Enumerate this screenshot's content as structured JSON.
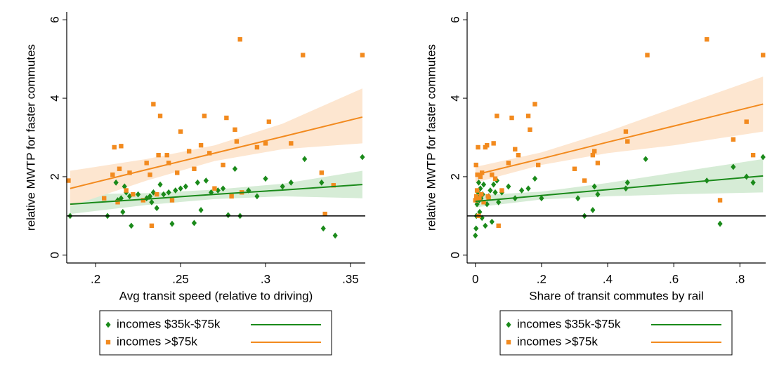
{
  "chart_data": [
    {
      "type": "scatter",
      "y_label": "relative MWTP for faster commutes",
      "x_label": "Avg transit speed (relative to driving)",
      "xlim": [
        0.183,
        0.3587
      ],
      "ylim": [
        -0.2,
        6.2
      ],
      "xticks": [
        {
          "value": 0.2,
          "label": ".2"
        },
        {
          "value": 0.25,
          "label": ".25"
        },
        {
          "value": 0.3,
          "label": ".3"
        },
        {
          "value": 0.35,
          "label": ".35"
        }
      ],
      "yticks": [
        0,
        2,
        4,
        6
      ],
      "hline": 1,
      "series": [
        {
          "name": "incomes $35k-$75k",
          "color": "#1a8a1a",
          "marker": "diamond",
          "x": [
            0.185,
            0.207,
            0.212,
            0.213,
            0.215,
            0.216,
            0.217,
            0.218,
            0.22,
            0.221,
            0.225,
            0.23,
            0.232,
            0.233,
            0.234,
            0.236,
            0.238,
            0.24,
            0.243,
            0.245,
            0.247,
            0.25,
            0.253,
            0.258,
            0.26,
            0.262,
            0.265,
            0.268,
            0.272,
            0.275,
            0.278,
            0.282,
            0.285,
            0.29,
            0.295,
            0.3,
            0.31,
            0.315,
            0.323,
            0.333,
            0.334,
            0.341,
            0.357
          ],
          "values": [
            1.0,
            1.0,
            1.85,
            1.4,
            1.45,
            1.1,
            1.75,
            1.6,
            1.5,
            0.75,
            1.55,
            1.45,
            1.5,
            1.35,
            1.6,
            1.2,
            1.8,
            1.55,
            1.6,
            0.8,
            1.65,
            1.7,
            1.75,
            0.82,
            1.85,
            1.15,
            1.9,
            1.6,
            1.65,
            1.7,
            1.02,
            2.2,
            1.0,
            1.65,
            1.5,
            1.95,
            1.75,
            1.85,
            2.45,
            1.85,
            0.68,
            0.5,
            2.5
          ],
          "fit": {
            "color": "#1a8a1a",
            "band": "#d6ecd6",
            "x": [
              0.185,
              0.23,
              0.27,
              0.31,
              0.357
            ],
            "values": [
              1.3,
              1.43,
              1.55,
              1.66,
              1.8
            ],
            "lower": [
              1.05,
              1.28,
              1.43,
              1.5,
              1.45
            ],
            "upper": [
              1.55,
              1.58,
              1.67,
              1.82,
              2.15
            ]
          }
        },
        {
          "name": "incomes >$75k",
          "color": "#f28a1e",
          "marker": "square",
          "x": [
            0.184,
            0.205,
            0.21,
            0.211,
            0.213,
            0.214,
            0.215,
            0.218,
            0.22,
            0.222,
            0.228,
            0.23,
            0.232,
            0.233,
            0.234,
            0.236,
            0.237,
            0.238,
            0.242,
            0.243,
            0.245,
            0.248,
            0.25,
            0.255,
            0.258,
            0.262,
            0.264,
            0.267,
            0.27,
            0.275,
            0.277,
            0.28,
            0.282,
            0.283,
            0.285,
            0.286,
            0.295,
            0.3,
            0.302,
            0.315,
            0.322,
            0.333,
            0.335,
            0.34,
            0.357
          ],
          "values": [
            1.9,
            1.45,
            2.05,
            2.75,
            1.35,
            2.2,
            2.78,
            1.65,
            2.1,
            1.55,
            1.4,
            2.35,
            2.05,
            0.75,
            3.85,
            1.55,
            2.55,
            3.55,
            2.55,
            2.35,
            1.4,
            2.1,
            3.15,
            2.65,
            2.2,
            2.8,
            3.55,
            2.6,
            1.7,
            2.3,
            3.5,
            1.5,
            3.2,
            2.9,
            5.5,
            1.6,
            2.75,
            2.85,
            3.4,
            2.85,
            5.1,
            2.1,
            1.05,
            1.78,
            5.1
          ],
          "fit": {
            "color": "#f28a1e",
            "band": "#fde6d0",
            "x": [
              0.185,
              0.23,
              0.27,
              0.31,
              0.357
            ],
            "values": [
              1.7,
              2.18,
              2.6,
              3.02,
              3.52
            ],
            "lower": [
              1.25,
              1.9,
              2.4,
              2.7,
              2.85
            ],
            "upper": [
              2.15,
              2.45,
              2.8,
              3.35,
              4.25
            ]
          }
        }
      ]
    },
    {
      "type": "scatter",
      "y_label": "relative MWTP for faster commutes",
      "x_label": "Share of transit commutes by rail",
      "xlim": [
        -0.025,
        0.878
      ],
      "ylim": [
        -0.2,
        6.2
      ],
      "xticks": [
        0,
        {
          "value": 0.2,
          "label": ".2"
        },
        {
          "value": 0.4,
          "label": ".4"
        },
        {
          "value": 0.6,
          "label": ".6"
        },
        {
          "value": 0.8,
          "label": ".8"
        }
      ],
      "yticks": [
        0,
        2,
        4,
        6
      ],
      "hline": 1,
      "series": [
        {
          "name": "incomes $35k-$75k",
          "color": "#1a8a1a",
          "marker": "diamond",
          "x": [
            0.0,
            0.002,
            0.003,
            0.005,
            0.006,
            0.008,
            0.01,
            0.012,
            0.013,
            0.015,
            0.017,
            0.02,
            0.022,
            0.025,
            0.03,
            0.035,
            0.04,
            0.045,
            0.05,
            0.055,
            0.06,
            0.065,
            0.07,
            0.08,
            0.1,
            0.12,
            0.14,
            0.16,
            0.18,
            0.2,
            0.31,
            0.33,
            0.355,
            0.36,
            0.37,
            0.455,
            0.46,
            0.515,
            0.7,
            0.74,
            0.78,
            0.82,
            0.84,
            0.87
          ],
          "values": [
            0.5,
            0.68,
            1.0,
            1.3,
            1.5,
            1.6,
            1.85,
            1.4,
            1.1,
            1.7,
            1.45,
            0.95,
            1.55,
            1.8,
            0.75,
            1.3,
            1.5,
            1.65,
            0.85,
            1.8,
            1.6,
            1.9,
            1.35,
            1.6,
            1.75,
            1.45,
            1.65,
            1.7,
            1.95,
            1.45,
            1.45,
            1.0,
            1.15,
            1.75,
            1.55,
            1.7,
            1.85,
            2.45,
            1.9,
            0.8,
            2.25,
            2.0,
            1.85,
            2.5
          ],
          "fit": {
            "color": "#1a8a1a",
            "band": "#d6ecd6",
            "x": [
              0,
              0.2,
              0.4,
              0.6,
              0.87
            ],
            "values": [
              1.37,
              1.52,
              1.67,
              1.82,
              2.02
            ],
            "lower": [
              1.22,
              1.42,
              1.5,
              1.55,
              1.6
            ],
            "upper": [
              1.52,
              1.62,
              1.84,
              2.1,
              2.45
            ]
          }
        },
        {
          "name": "incomes >$75k",
          "color": "#f28a1e",
          "marker": "square",
          "x": [
            0.0,
            0.002,
            0.003,
            0.005,
            0.006,
            0.008,
            0.01,
            0.012,
            0.015,
            0.018,
            0.02,
            0.025,
            0.03,
            0.035,
            0.038,
            0.04,
            0.05,
            0.055,
            0.06,
            0.065,
            0.07,
            0.08,
            0.1,
            0.11,
            0.12,
            0.13,
            0.16,
            0.165,
            0.18,
            0.19,
            0.3,
            0.33,
            0.355,
            0.36,
            0.37,
            0.455,
            0.46,
            0.52,
            0.7,
            0.74,
            0.78,
            0.82,
            0.84,
            0.87
          ],
          "values": [
            1.4,
            2.3,
            1.5,
            1.65,
            2.05,
            2.75,
            1.0,
            1.45,
            2.0,
            1.55,
            2.1,
            1.35,
            2.75,
            2.8,
            1.5,
            1.45,
            2.05,
            2.85,
            1.95,
            3.55,
            0.75,
            1.65,
            2.35,
            3.5,
            2.7,
            2.55,
            3.55,
            3.2,
            3.85,
            2.3,
            2.2,
            1.9,
            2.55,
            2.65,
            2.35,
            3.15,
            2.9,
            5.1,
            5.5,
            1.4,
            2.95,
            3.4,
            2.55,
            5.1
          ],
          "fit": {
            "color": "#f28a1e",
            "band": "#fde6d0",
            "x": [
              0,
              0.2,
              0.4,
              0.6,
              0.87
            ],
            "values": [
              2.05,
              2.46,
              2.88,
              3.29,
              3.85
            ],
            "lower": [
              1.85,
              2.3,
              2.6,
              2.8,
              3.15
            ],
            "upper": [
              2.25,
              2.62,
              3.15,
              3.75,
              4.55
            ]
          }
        }
      ]
    }
  ]
}
